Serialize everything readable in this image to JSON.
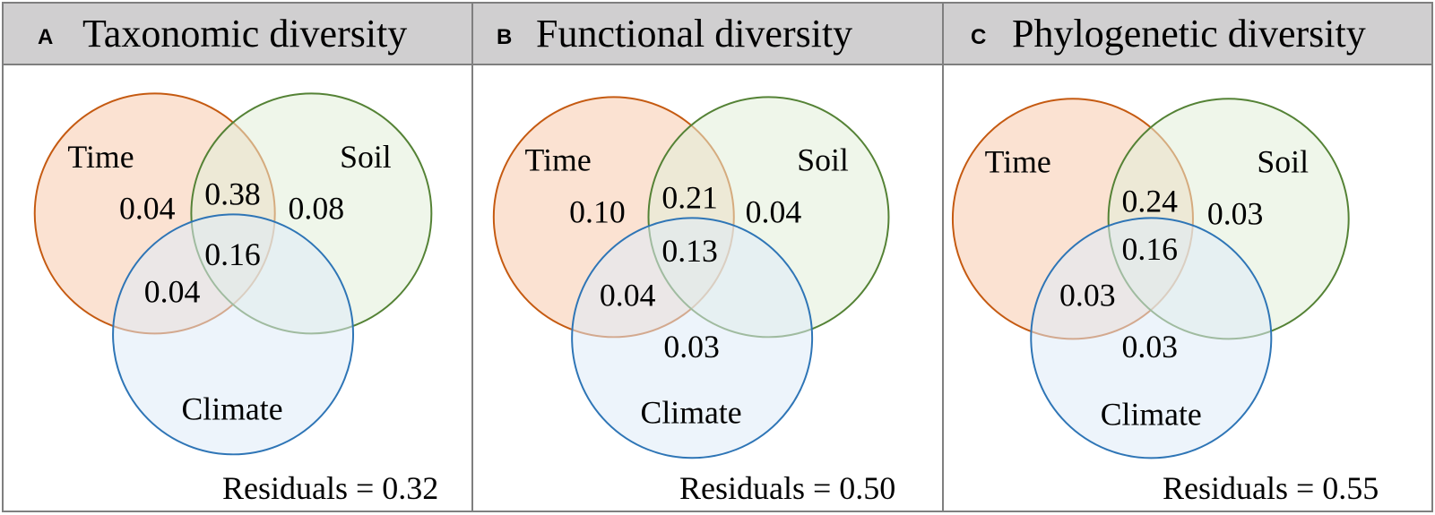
{
  "colors": {
    "time_stroke": "#c55a11",
    "time_fill": "#f8cbad",
    "soil_stroke": "#548235",
    "soil_fill": "#e2efd9",
    "climate_stroke": "#2e75b6",
    "climate_fill": "#deebf7",
    "header_bg": "#d0cfd0",
    "border": "#7f7f7f"
  },
  "panels": [
    {
      "letter": "A",
      "title": "Taxonomic diversity",
      "labels": {
        "time": "Time",
        "soil": "Soil",
        "climate": "Climate"
      },
      "values": {
        "time_only": "0.04",
        "time_soil": "0.38",
        "soil_only": "0.08",
        "all_three": "0.16",
        "time_climate": "0.04",
        "soil_climate": ""
      },
      "residuals": "Residuals = 0.32"
    },
    {
      "letter": "B",
      "title": "Functional diversity",
      "labels": {
        "time": "Time",
        "soil": "Soil",
        "climate": "Climate"
      },
      "values": {
        "time_only": "0.10",
        "time_soil": "0.21",
        "soil_only": "0.04",
        "all_three": "0.13",
        "time_climate": "0.04",
        "soil_climate": "0.03"
      },
      "residuals": "Residuals = 0.50"
    },
    {
      "letter": "C",
      "title": "Phylogenetic diversity",
      "labels": {
        "time": "Time",
        "soil": "Soil",
        "climate": "Climate"
      },
      "values": {
        "time_only": "",
        "time_soil": "0.24",
        "soil_only": "0.03",
        "all_three": "0.16",
        "time_climate": "0.03",
        "soil_climate": "0.03"
      },
      "residuals": "Residuals = 0.55"
    }
  ]
}
